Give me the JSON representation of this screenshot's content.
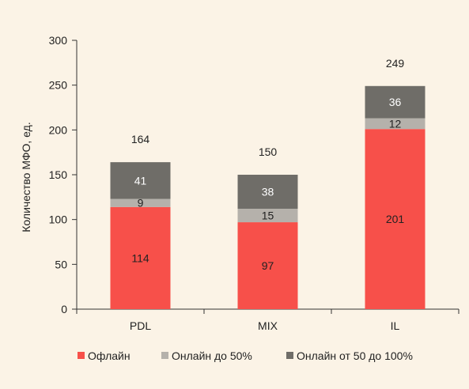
{
  "chart_data": {
    "type": "bar",
    "stacked": true,
    "categories": [
      "PDL",
      "MIX",
      "IL"
    ],
    "series": [
      {
        "name": "Офлайн",
        "values": [
          114,
          97,
          201
        ],
        "color": "#f7504a"
      },
      {
        "name": "Онлайн до 50%",
        "values": [
          9,
          15,
          12
        ],
        "color": "#b5b1ab"
      },
      {
        "name": "Онлайн от 50 до 100%",
        "values": [
          41,
          38,
          36
        ],
        "color": "#6f6d68"
      }
    ],
    "totals": [
      164,
      150,
      249
    ],
    "xlabel": "",
    "ylabel": "Количество МФО, ед.",
    "ylim": [
      0,
      300
    ],
    "yticks": [
      0,
      50,
      100,
      150,
      200,
      250,
      300
    ],
    "grid": false,
    "legend_position": "bottom"
  }
}
